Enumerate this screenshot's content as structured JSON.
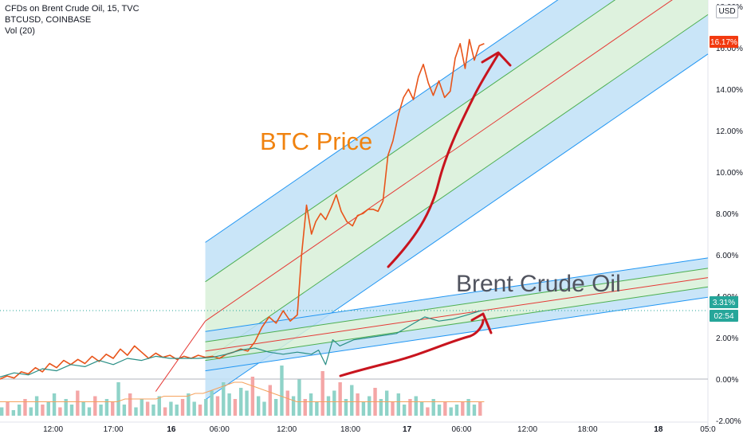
{
  "legend": {
    "line1": "CFDs on Brent Crude Oil, 15, TVC",
    "line2": "BTCUSD, COINBASE",
    "line3": "Vol (20)"
  },
  "currency_badge": "USD",
  "colors": {
    "btc": "#e8541a",
    "oil": "#2a8f86",
    "regression_mid": "#e53935",
    "band_outer": "#bfe1f7",
    "band_outer_stroke": "#2196f3",
    "band_inner": "#d8f0d8",
    "band_inner_stroke": "#4caf50",
    "arrow": "#c8141e",
    "annotation_btc": "#f0820f",
    "annotation_oil": "#50535e",
    "vol_up": "#8fd3c8",
    "vol_down": "#f4a6a6",
    "vol_ma": "#f5a25d",
    "price_tag_btc": "#f23a10",
    "price_tag_oil": "#26a69a"
  },
  "price_tags": {
    "btc": "16.17%",
    "oil": "3.31%",
    "countdown": "02:54"
  },
  "annotations": {
    "btc_label": "BTC Price",
    "oil_label": "Brent Crude Oil"
  },
  "chart_data": {
    "type": "line",
    "y_scale": "percent",
    "ylim": [
      -2.0,
      18.0
    ],
    "y_ticks": [
      "-2.00%",
      "0.00%",
      "2.00%",
      "4.00%",
      "6.00%",
      "8.00%",
      "10.00%",
      "12.00%",
      "14.00%",
      "16.00%",
      "18.00%"
    ],
    "x_tick_labels": [
      "12:00",
      "17:00",
      "16",
      "06:00",
      "12:00",
      "18:00",
      "17",
      "06:00",
      "12:00",
      "18:00",
      "18",
      "05:0"
    ],
    "xlim": [
      0,
      100
    ],
    "x_tick_positions": [
      7.5,
      16.0,
      24.2,
      31.0,
      40.5,
      49.5,
      57.5,
      65.2,
      74.5,
      83.0,
      93.0,
      100.0
    ],
    "series": [
      {
        "name": "BTCUSD",
        "values": [
          [
            0,
            0.0
          ],
          [
            1,
            0.15
          ],
          [
            2,
            0.05
          ],
          [
            3,
            0.35
          ],
          [
            4,
            0.25
          ],
          [
            5,
            0.55
          ],
          [
            6,
            0.35
          ],
          [
            7,
            0.75
          ],
          [
            8,
            0.55
          ],
          [
            9,
            0.9
          ],
          [
            10,
            0.7
          ],
          [
            11,
            0.95
          ],
          [
            12,
            0.75
          ],
          [
            13,
            1.1
          ],
          [
            14,
            0.85
          ],
          [
            15,
            1.2
          ],
          [
            16,
            1.0
          ],
          [
            17,
            1.45
          ],
          [
            18,
            1.15
          ],
          [
            19,
            1.6
          ],
          [
            20,
            1.3
          ],
          [
            21,
            1.0
          ],
          [
            22,
            1.25
          ],
          [
            23,
            1.05
          ],
          [
            24,
            1.15
          ],
          [
            25,
            0.95
          ],
          [
            26,
            1.1
          ],
          [
            27,
            1.0
          ],
          [
            28,
            1.15
          ],
          [
            29,
            1.05
          ],
          [
            30,
            1.1
          ],
          [
            31,
            1.0
          ],
          [
            32,
            1.2
          ],
          [
            33,
            1.3
          ],
          [
            34,
            1.45
          ],
          [
            35,
            1.35
          ],
          [
            36,
            1.8
          ],
          [
            37,
            2.5
          ],
          [
            38,
            3.0
          ],
          [
            39,
            2.7
          ],
          [
            40,
            3.3
          ],
          [
            41,
            2.8
          ],
          [
            42,
            3.1
          ],
          [
            42.6,
            6.0
          ],
          [
            43.3,
            8.4
          ],
          [
            44.0,
            7.0
          ],
          [
            44.6,
            7.6
          ],
          [
            45.3,
            8.0
          ],
          [
            46.0,
            7.7
          ],
          [
            46.8,
            8.3
          ],
          [
            47.5,
            8.9
          ],
          [
            48.2,
            8.1
          ],
          [
            49.0,
            7.6
          ],
          [
            49.8,
            7.4
          ],
          [
            50.5,
            7.9
          ],
          [
            51.3,
            8.0
          ],
          [
            52.0,
            8.2
          ],
          [
            52.7,
            8.2
          ],
          [
            53.4,
            8.1
          ],
          [
            54.1,
            8.6
          ],
          [
            54.8,
            10.8
          ],
          [
            55.5,
            11.5
          ],
          [
            56.3,
            12.8
          ],
          [
            57.0,
            13.6
          ],
          [
            57.7,
            14.0
          ],
          [
            58.4,
            13.5
          ],
          [
            59.1,
            14.6
          ],
          [
            59.8,
            15.2
          ],
          [
            60.5,
            14.3
          ],
          [
            61.2,
            13.7
          ],
          [
            62.0,
            14.4
          ],
          [
            62.8,
            13.6
          ],
          [
            63.6,
            13.9
          ],
          [
            64.3,
            15.5
          ],
          [
            65.0,
            16.2
          ],
          [
            65.7,
            15.0
          ],
          [
            66.3,
            16.4
          ],
          [
            67.0,
            15.4
          ],
          [
            67.7,
            16.1
          ],
          [
            68.4,
            16.2
          ]
        ]
      },
      {
        "name": "CFDs on Brent Crude Oil",
        "values": [
          [
            0,
            0.1
          ],
          [
            2,
            0.3
          ],
          [
            4,
            0.2
          ],
          [
            6,
            0.5
          ],
          [
            8,
            0.4
          ],
          [
            10,
            0.7
          ],
          [
            12,
            0.6
          ],
          [
            14,
            0.9
          ],
          [
            16,
            0.7
          ],
          [
            18,
            1.0
          ],
          [
            20,
            0.9
          ],
          [
            22,
            1.1
          ],
          [
            24,
            1.0
          ],
          [
            26,
            1.0
          ],
          [
            28,
            1.0
          ],
          [
            30,
            1.05
          ],
          [
            32,
            1.2
          ],
          [
            34,
            1.4
          ],
          [
            36,
            1.5
          ],
          [
            38,
            1.3
          ],
          [
            40,
            1.2
          ],
          [
            42,
            1.3
          ],
          [
            44,
            1.2
          ],
          [
            45,
            1.4
          ],
          [
            46,
            0.7
          ],
          [
            47,
            1.9
          ],
          [
            48,
            1.6
          ],
          [
            50,
            1.9
          ],
          [
            52,
            2.0
          ],
          [
            54,
            2.1
          ],
          [
            56,
            2.2
          ],
          [
            58,
            2.6
          ],
          [
            60,
            3.0
          ],
          [
            62,
            2.8
          ],
          [
            64,
            2.9
          ],
          [
            66,
            3.1
          ],
          [
            68,
            3.31
          ]
        ]
      }
    ],
    "volume": [
      3,
      5,
      2,
      4,
      6,
      3,
      7,
      4,
      5,
      8,
      3,
      6,
      4,
      9,
      5,
      3,
      7,
      4,
      6,
      5,
      12,
      4,
      8,
      3,
      6,
      5,
      4,
      7,
      3,
      5,
      4,
      6,
      8,
      5,
      4,
      6,
      9,
      7,
      12,
      8,
      6,
      10,
      9,
      14,
      7,
      5,
      11,
      6,
      18,
      9,
      7,
      13,
      6,
      8,
      5,
      16,
      7,
      9,
      12,
      6,
      11,
      8,
      5,
      7,
      10,
      6,
      9,
      5,
      8,
      4,
      6,
      7,
      5,
      3,
      6,
      4,
      5,
      3,
      4,
      5,
      6,
      4,
      5
    ],
    "volume_ma": [
      5,
      5,
      5,
      5,
      5,
      5,
      5,
      5,
      5,
      5,
      5,
      5,
      5,
      5,
      5,
      5,
      6,
      6,
      6,
      6,
      6,
      7,
      7,
      7,
      7,
      8,
      8,
      9,
      10,
      11,
      12,
      12,
      11,
      10,
      9,
      8,
      7,
      6,
      5,
      5,
      5,
      5,
      5,
      5,
      5,
      5,
      5,
      5,
      5,
      5,
      5,
      5,
      5,
      5,
      5,
      5,
      5,
      5,
      5,
      5,
      5,
      5,
      5
    ],
    "regression_channels": [
      {
        "name": "BTC channel",
        "start": [
          29.0,
          2.8
        ],
        "end": [
          100.0,
          19.5
        ],
        "offsets_outer": 3.8,
        "offsets_inner": 1.9,
        "extend_mid_from": [
          22.0,
          -0.6
        ]
      },
      {
        "name": "Oil channel",
        "start": [
          29.0,
          1.35
        ],
        "end": [
          100.0,
          4.9
        ],
        "offsets_outer": 0.95,
        "offsets_inner": 0.45
      }
    ],
    "grid": false,
    "legend_placement": "top-left"
  }
}
